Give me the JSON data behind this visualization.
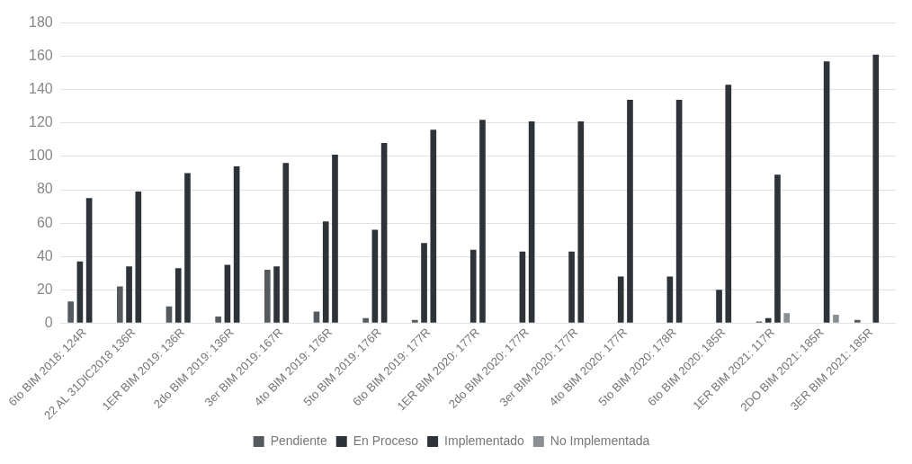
{
  "chart_data": {
    "type": "bar",
    "categories": [
      "6to BIM 2018: 124R",
      "22 AL 31DIC2018 136R",
      "1ER BIM 2019: 136R",
      "2do BIM 2019: 136R",
      "3er BIM 2019: 167R",
      "4to BIM 2019: 176R",
      "5to BIM 2019: 176R",
      "6to BIM 2019: 177R",
      "1ER BIM 2020: 177R",
      "2do BIM 2020: 177R",
      "3er BIM 2020: 177R",
      "4to BIM 2020: 177R",
      "5to BIM 2020: 178R",
      "6to BIM 2020: 185R",
      "1ER BIM 2021: 117R",
      "2DO BIM 2021: 185R",
      "3ER BIM 2021: 185R"
    ],
    "series": [
      {
        "name": "Pendiente",
        "color": "#555a5e",
        "values": [
          13,
          22,
          10,
          4,
          32,
          7,
          3,
          2,
          0,
          0,
          0,
          0,
          0,
          0,
          1,
          0,
          2
        ]
      },
      {
        "name": "En Proceso",
        "color": "#2d3338",
        "values": [
          37,
          34,
          33,
          35,
          34,
          61,
          56,
          48,
          44,
          43,
          43,
          28,
          28,
          20,
          3,
          0,
          0
        ]
      },
      {
        "name": "Implementado",
        "color": "#2d3338",
        "values": [
          75,
          79,
          90,
          94,
          96,
          101,
          108,
          116,
          122,
          121,
          121,
          134,
          134,
          143,
          89,
          157,
          161
        ]
      },
      {
        "name": "No Implementada",
        "color": "#8a8f93",
        "values": [
          0,
          0,
          0,
          0,
          0,
          0,
          0,
          0,
          0,
          0,
          0,
          0,
          0,
          0,
          6,
          5,
          0
        ]
      }
    ],
    "ylim": [
      0,
      180
    ],
    "yticks": [
      0,
      20,
      40,
      60,
      80,
      100,
      120,
      140,
      160,
      180
    ],
    "grid": "y",
    "legend": "bottom"
  }
}
